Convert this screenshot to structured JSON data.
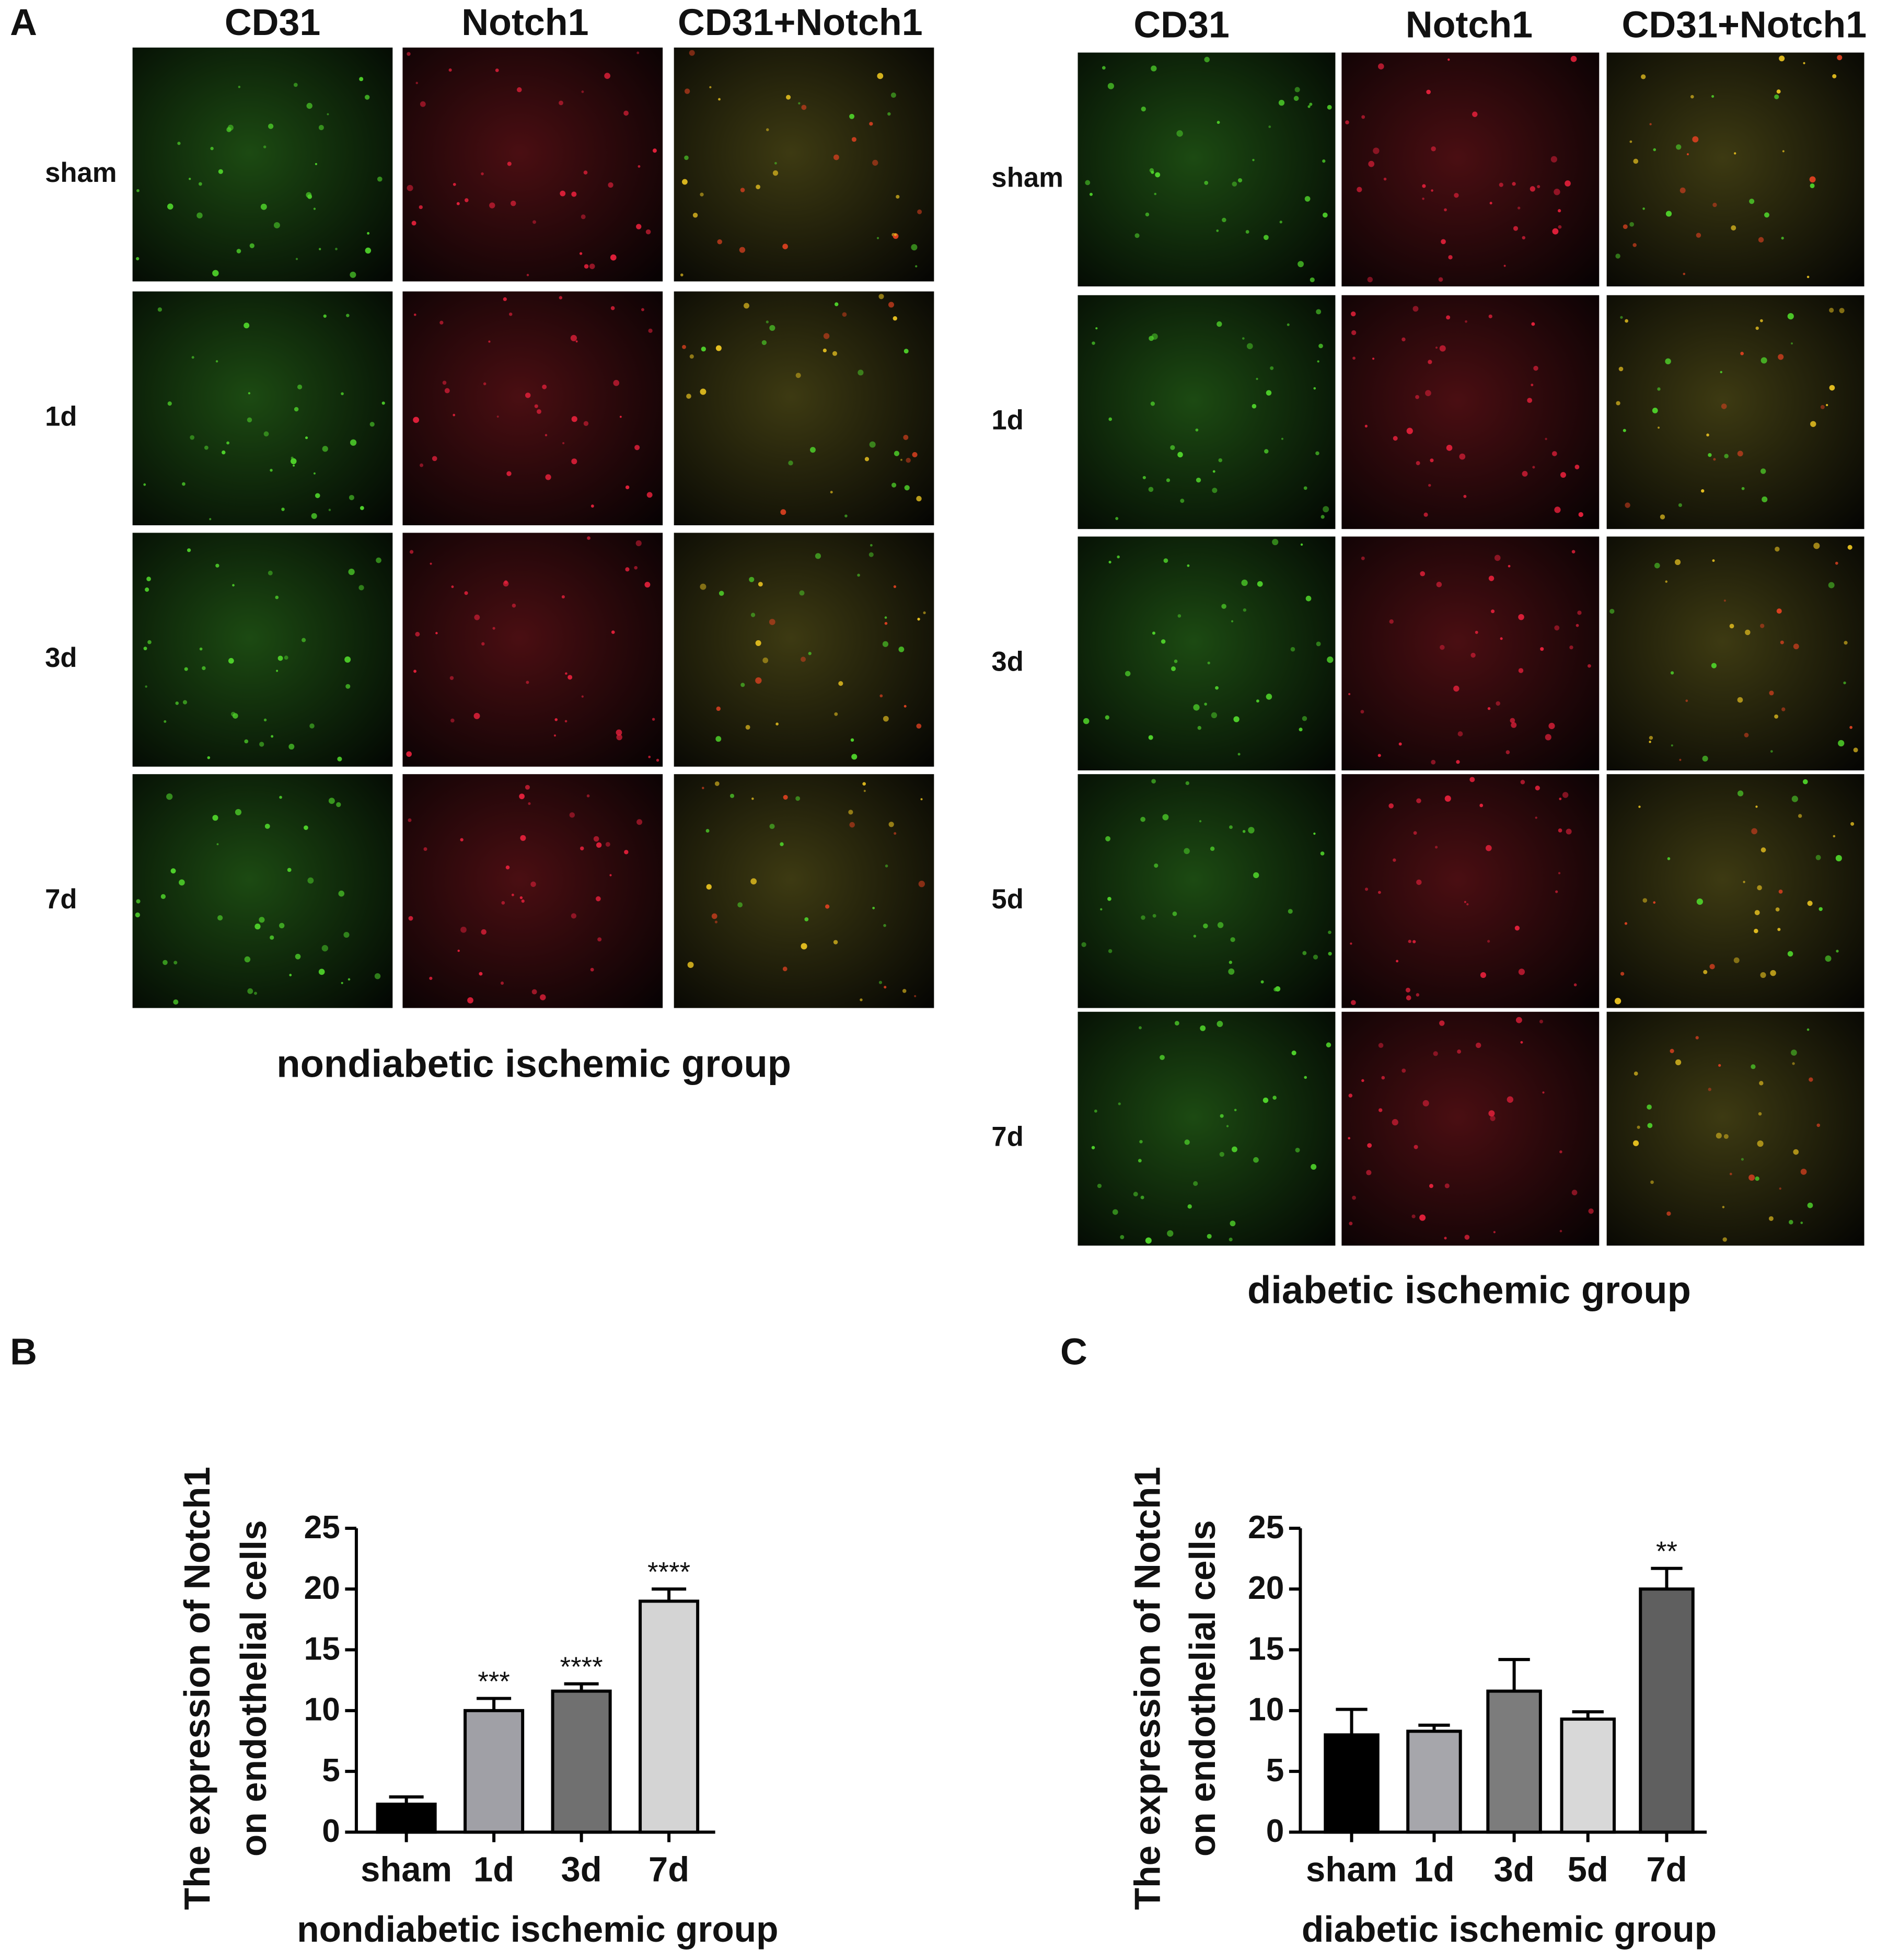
{
  "figure": {
    "panel_a": {
      "label": "A",
      "left": {
        "columns": [
          "CD31",
          "Notch1",
          "CD31+Notch1"
        ],
        "rows": [
          "sham",
          "1d",
          "3d",
          "7d"
        ],
        "caption": "nondiabetic ischemic group"
      },
      "right": {
        "columns": [
          "CD31",
          "Notch1",
          "CD31+Notch1"
        ],
        "rows": [
          "sham",
          "1d",
          "3d",
          "5d",
          "7d"
        ],
        "caption": "diabetic ischemic group"
      }
    },
    "panel_b_label": "B",
    "panel_c_label": "C"
  },
  "chart_data": [
    {
      "type": "bar",
      "categories": [
        "sham",
        "1d",
        "3d",
        "7d"
      ],
      "values": [
        2.3,
        10,
        11.6,
        19
      ],
      "errors": [
        0.6,
        1.0,
        0.6,
        1.0
      ],
      "annotations": [
        null,
        "***",
        "****",
        "****"
      ],
      "colors": [
        "#000000",
        "#a0a0a6",
        "#707070",
        "#d4d4d4"
      ],
      "y_label": [
        "The expression of Notch1",
        "on endothelial cells"
      ],
      "x_label": "nondiabetic ischemic group",
      "ylim": [
        0,
        25
      ],
      "yticks": [
        0,
        5,
        10,
        15,
        20,
        25
      ]
    },
    {
      "type": "bar",
      "categories": [
        "sham",
        "1d",
        "3d",
        "5d",
        "7d"
      ],
      "values": [
        8,
        8.3,
        11.6,
        9.3,
        20
      ],
      "errors": [
        2.1,
        0.5,
        2.6,
        0.6,
        1.7
      ],
      "annotations": [
        null,
        null,
        null,
        null,
        "**"
      ],
      "colors": [
        "#000000",
        "#a6a6ab",
        "#7c7c7c",
        "#d8d8d8",
        "#5f5f5f"
      ],
      "y_label": [
        "The expression of Notch1",
        "on endothelial cells"
      ],
      "x_label": "diabetic ischemic group",
      "ylim": [
        0,
        25
      ],
      "yticks": [
        0,
        5,
        10,
        15,
        20,
        25
      ]
    }
  ]
}
